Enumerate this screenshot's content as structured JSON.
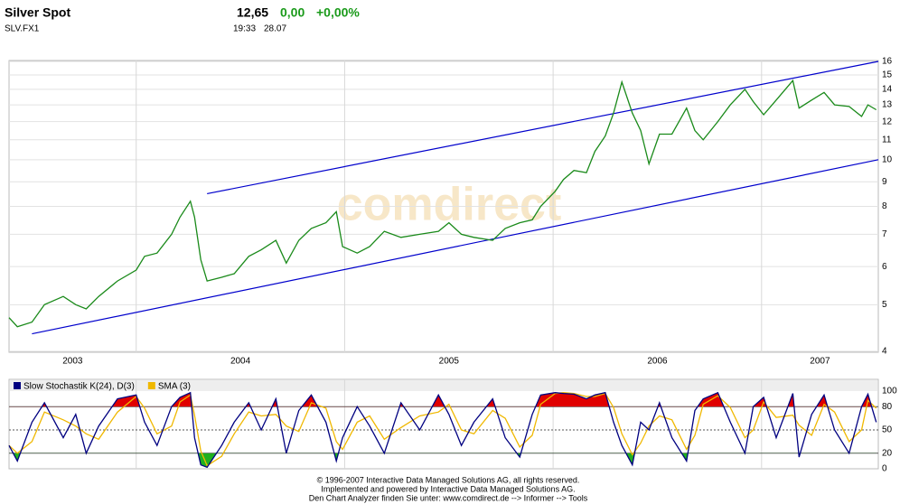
{
  "header": {
    "name": "Silver Spot",
    "symbol": "SLV.FX1",
    "price": "12,65",
    "change": "0,00",
    "change_pct": "+0,00%",
    "time": "19:33",
    "date": "28.07"
  },
  "watermark": "comdirect",
  "chart_data": [
    {
      "type": "line",
      "log": true,
      "grid": true,
      "xlim": [
        2003.39,
        2007.56
      ],
      "ylim": [
        4,
        16
      ],
      "xticks": [
        2003,
        2004,
        2005,
        2006,
        2007
      ],
      "yticks": [
        4,
        5,
        6,
        7,
        8,
        9,
        10,
        11,
        12,
        13,
        14,
        15,
        16
      ],
      "x": [
        2003.39,
        2003.43,
        2003.5,
        2003.56,
        2003.65,
        2003.71,
        2003.76,
        2003.82,
        2003.91,
        2004.0,
        2004.04,
        2004.1,
        2004.17,
        2004.21,
        2004.26,
        2004.28,
        2004.31,
        2004.34,
        2004.41,
        2004.47,
        2004.54,
        2004.6,
        2004.67,
        2004.72,
        2004.78,
        2004.84,
        2004.91,
        2004.96,
        2004.99,
        2005.06,
        2005.12,
        2005.19,
        2005.27,
        2005.36,
        2005.45,
        2005.5,
        2005.56,
        2005.62,
        2005.71,
        2005.77,
        2005.84,
        2005.9,
        2005.94,
        2006.01,
        2006.05,
        2006.1,
        2006.16,
        2006.2,
        2006.25,
        2006.29,
        2006.33,
        2006.38,
        2006.42,
        2006.46,
        2006.51,
        2006.57,
        2006.64,
        2006.68,
        2006.72,
        2006.79,
        2006.85,
        2006.92,
        2006.96,
        2007.01,
        2007.07,
        2007.15,
        2007.18,
        2007.24,
        2007.3,
        2007.35,
        2007.42,
        2007.48,
        2007.51,
        2007.55
      ],
      "series": [
        {
          "color": "#1a8a1a",
          "values": [
            4.7,
            4.5,
            4.6,
            5.0,
            5.2,
            5.0,
            4.9,
            5.2,
            5.6,
            5.9,
            6.3,
            6.4,
            7.0,
            7.6,
            8.2,
            7.6,
            6.2,
            5.6,
            5.7,
            5.8,
            6.3,
            6.5,
            6.8,
            6.1,
            6.8,
            7.2,
            7.4,
            7.8,
            6.6,
            6.4,
            6.6,
            7.1,
            6.9,
            7.0,
            7.1,
            7.4,
            7.0,
            6.9,
            6.8,
            7.2,
            7.4,
            7.5,
            8.0,
            8.6,
            9.1,
            9.5,
            9.4,
            10.4,
            11.2,
            12.5,
            14.5,
            12.5,
            11.5,
            9.8,
            11.3,
            11.3,
            12.8,
            11.5,
            11.0,
            12.0,
            13.0,
            14.0,
            13.2,
            12.4,
            13.3,
            14.6,
            12.8,
            13.3,
            13.8,
            13.0,
            12.9,
            12.3,
            13.0,
            12.7
          ]
        }
      ],
      "trend_lines": [
        {
          "color": "#0000cc",
          "x": [
            2004.34,
            2007.56
          ],
          "values": [
            8.5,
            16
          ]
        },
        {
          "color": "#0000cc",
          "x": [
            2003.5,
            2007.56
          ],
          "values": [
            4.35,
            10
          ]
        }
      ]
    },
    {
      "type": "line",
      "grid": true,
      "ylim": [
        0,
        100
      ],
      "yticks": [
        0,
        20,
        50,
        80,
        100
      ],
      "xlim": [
        2003.39,
        2007.56
      ],
      "x": [
        2003.39,
        2003.43,
        2003.5,
        2003.56,
        2003.65,
        2003.71,
        2003.76,
        2003.82,
        2003.91,
        2004.0,
        2004.04,
        2004.1,
        2004.17,
        2004.21,
        2004.26,
        2004.28,
        2004.31,
        2004.34,
        2004.41,
        2004.47,
        2004.54,
        2004.6,
        2004.67,
        2004.72,
        2004.78,
        2004.84,
        2004.91,
        2004.96,
        2004.99,
        2005.06,
        2005.12,
        2005.19,
        2005.27,
        2005.36,
        2005.45,
        2005.5,
        2005.56,
        2005.62,
        2005.71,
        2005.77,
        2005.84,
        2005.9,
        2005.94,
        2006.01,
        2006.05,
        2006.1,
        2006.16,
        2006.2,
        2006.25,
        2006.29,
        2006.33,
        2006.38,
        2006.42,
        2006.46,
        2006.51,
        2006.57,
        2006.64,
        2006.68,
        2006.72,
        2006.79,
        2006.85,
        2006.92,
        2006.96,
        2007.01,
        2007.07,
        2007.15,
        2007.18,
        2007.24,
        2007.3,
        2007.35,
        2007.42,
        2007.48,
        2007.51,
        2007.55
      ],
      "series": [
        {
          "name": "Slow Stochastik K(24), D(3)",
          "color": "#000080",
          "values": [
            30,
            10,
            60,
            85,
            40,
            70,
            20,
            55,
            90,
            95,
            60,
            30,
            80,
            92,
            98,
            40,
            5,
            2,
            30,
            60,
            85,
            50,
            90,
            20,
            75,
            95,
            60,
            10,
            40,
            80,
            55,
            20,
            85,
            50,
            95,
            70,
            30,
            60,
            90,
            40,
            15,
            70,
            95,
            98,
            97,
            96,
            90,
            95,
            98,
            60,
            30,
            5,
            60,
            50,
            85,
            40,
            10,
            75,
            90,
            98,
            60,
            20,
            80,
            92,
            40,
            97,
            15,
            70,
            95,
            50,
            20,
            80,
            96,
            60
          ]
        },
        {
          "name": "SMA (3)",
          "color": "#f0b800",
          "values": [
            30,
            20,
            35,
            73,
            63,
            55,
            45,
            38,
            73,
            93,
            78,
            45,
            55,
            86,
            95,
            69,
            23,
            4,
            16,
            45,
            73,
            68,
            70,
            55,
            48,
            85,
            78,
            35,
            25,
            60,
            68,
            38,
            53,
            68,
            73,
            83,
            50,
            45,
            75,
            65,
            28,
            43,
            83,
            97,
            98,
            97,
            93,
            93,
            97,
            79,
            45,
            18,
            33,
            55,
            68,
            63,
            25,
            43,
            83,
            94,
            79,
            40,
            50,
            86,
            66,
            69,
            56,
            43,
            83,
            73,
            35,
            50,
            88,
            78
          ]
        }
      ],
      "overbought_color": "#e00000",
      "oversold_color": "#20b020"
    }
  ],
  "footer": [
    "© 1996-2007 Interactive Data Managed Solutions AG, all rights reserved.",
    "Implemented and powered by Interactive Data Managed Solutions AG.",
    "Den Chart Analyzer finden Sie unter: www.comdirect.de --> Informer --> Tools"
  ]
}
